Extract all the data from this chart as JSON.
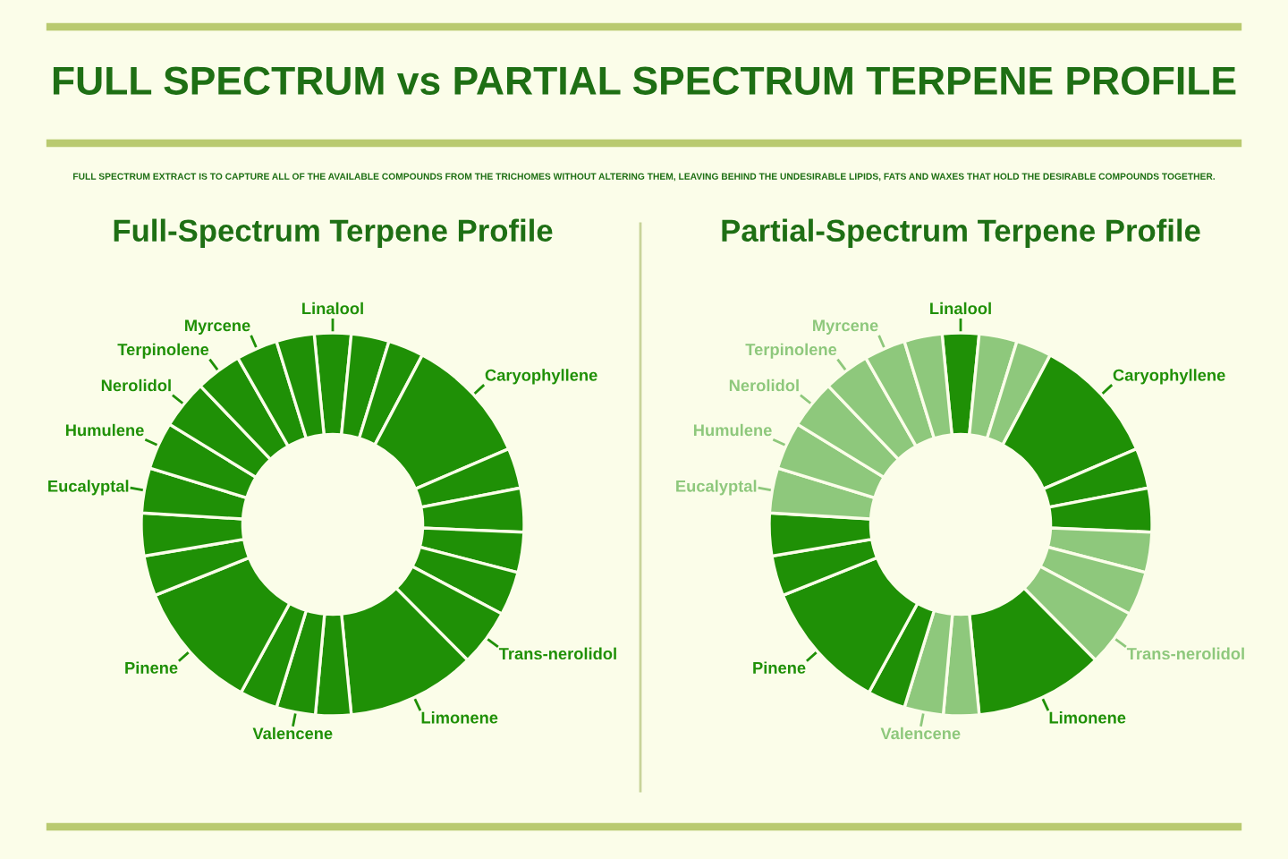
{
  "chart_data": [
    {
      "type": "donut",
      "title": "Full-Spectrum Terpene Profile",
      "annotations": [
        "FULL SPECTRUM vs PARTIAL SPECTRUM TERPENE PROFILE",
        "FULL SPECTRUM EXTRACT IS TO CAPTURE ALL OF THE AVAILABLE COMPOUNDS FROM THE TRICHOMES WITHOUT ALTERING THEM, LEAVING BEHIND THE UNDESIRABLE LIPIDS, FATS AND WAXES THAT HOLD THE DESIRABLE COMPOUNDS TOGETHER."
      ],
      "categories": [
        "Linalool",
        null,
        null,
        "Caryophyllene",
        null,
        null,
        null,
        null,
        "Trans-nerolidol",
        "Limonene",
        null,
        "Valencene",
        null,
        "Pinene",
        null,
        null,
        "Eucalyptal",
        "Humulene",
        "Nerolidol",
        "Terpinolene",
        "Myrcene",
        null
      ],
      "values": [
        3.1,
        3.2,
        3.0,
        10.8,
        3.4,
        3.7,
        3.4,
        3.7,
        4.8,
        10.9,
        3.0,
        3.3,
        3.2,
        11.0,
        3.4,
        3.6,
        3.8,
        4.0,
        4.1,
        3.9,
        3.5,
        3.2
      ],
      "colors": [
        "#1f9006",
        "#1f9006",
        "#1f9006",
        "#1f9006",
        "#1f9006",
        "#1f9006",
        "#1f9006",
        "#1f9006",
        "#1f9006",
        "#1f9006",
        "#1f9006",
        "#1f9006",
        "#1f9006",
        "#1f9006",
        "#1f9006",
        "#1f9006",
        "#1f9006",
        "#1f9006",
        "#1f9006",
        "#1f9006",
        "#1f9006",
        "#1f9006"
      ]
    },
    {
      "type": "donut",
      "title": "Partial-Spectrum Terpene Profile",
      "categories": [
        "Linalool",
        null,
        null,
        "Caryophyllene",
        null,
        null,
        null,
        null,
        "Trans-nerolidol",
        "Limonene",
        null,
        "Valencene",
        null,
        "Pinene",
        null,
        null,
        "Eucalyptal",
        "Humulene",
        "Nerolidol",
        "Terpinolene",
        "Myrcene",
        null
      ],
      "values": [
        3.1,
        3.2,
        3.0,
        10.8,
        3.4,
        3.7,
        3.4,
        3.7,
        4.8,
        10.9,
        3.0,
        3.3,
        3.2,
        11.0,
        3.4,
        3.6,
        3.8,
        4.0,
        4.1,
        3.9,
        3.5,
        3.2
      ],
      "colors": [
        "#1f9006",
        "#8ec87c",
        "#8ec87c",
        "#1f9006",
        "#1f9006",
        "#1f9006",
        "#8ec87c",
        "#8ec87c",
        "#8ec87c",
        "#1f9006",
        "#8ec87c",
        "#8ec87c",
        "#1f9006",
        "#1f9006",
        "#1f9006",
        "#1f9006",
        "#8ec87c",
        "#8ec87c",
        "#8ec87c",
        "#8ec87c",
        "#8ec87c",
        "#8ec87c"
      ]
    }
  ]
}
